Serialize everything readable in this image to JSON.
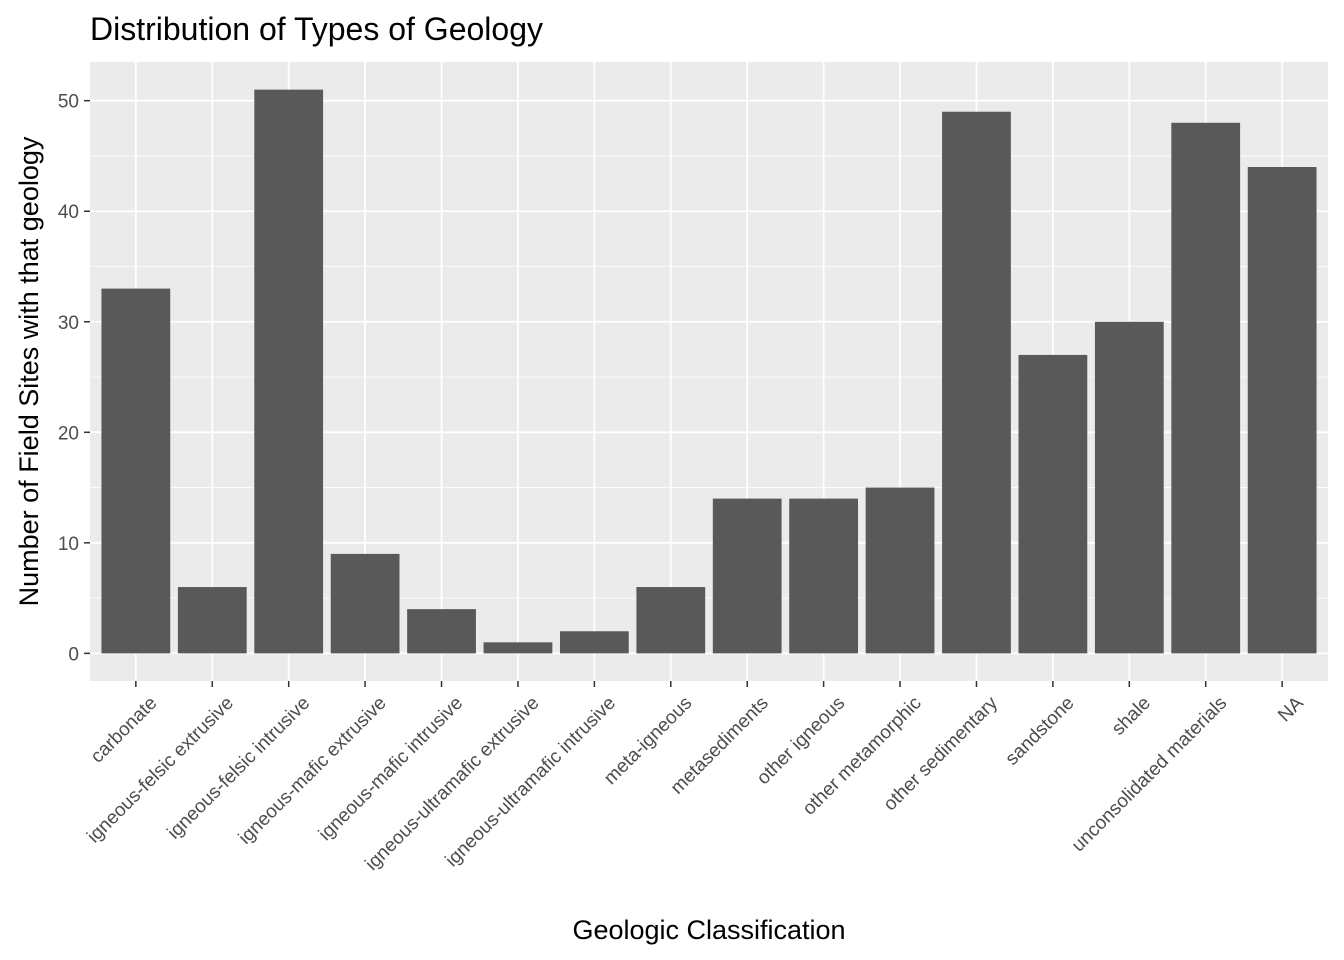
{
  "chart_data": {
    "type": "bar",
    "title": "Distribution of Types of Geology",
    "xlabel": "Geologic Classification",
    "ylabel": "Number of Field Sites with that geology",
    "categories": [
      "carbonate",
      "igneous-felsic extrusive",
      "igneous-felsic intrusive",
      "igneous-mafic extrusive",
      "igneous-mafic intrusive",
      "igneous-ultramafic extrusive",
      "igneous-ultramafic intrusive",
      "meta-igneous",
      "metasediments",
      "other igneous",
      "other metamorphic",
      "other sedimentary",
      "sandstone",
      "shale",
      "unconsolidated materials",
      "NA"
    ],
    "values": [
      33,
      6,
      51,
      9,
      4,
      1,
      2,
      6,
      14,
      14,
      15,
      49,
      27,
      30,
      48,
      44
    ],
    "ylim": [
      -2.5,
      53.5
    ],
    "yticks": [
      0,
      10,
      20,
      30,
      40,
      50
    ],
    "grid": true,
    "colors": {
      "panel": "#ebebeb",
      "grid_major": "#ffffff",
      "bar": "#595959",
      "tick_text": "#4d4d4d",
      "text": "#000000"
    }
  }
}
